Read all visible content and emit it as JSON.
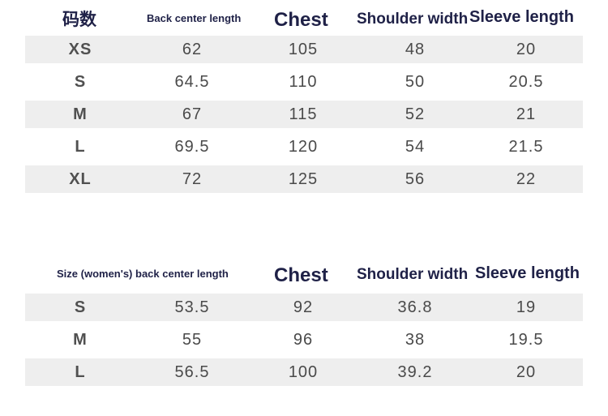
{
  "mens": {
    "headers": {
      "size": "码数",
      "back": "Back center length",
      "chest": "Chest",
      "shoulder": "Shoulder width",
      "sleeve": "Sleeve length"
    },
    "rows": [
      {
        "size": "XS",
        "back": "62",
        "chest": "105",
        "shoulder": "48",
        "sleeve": "20"
      },
      {
        "size": "S",
        "back": "64.5",
        "chest": "110",
        "shoulder": "50",
        "sleeve": "20.5"
      },
      {
        "size": "M",
        "back": "67",
        "chest": "115",
        "shoulder": "52",
        "sleeve": "21"
      },
      {
        "size": "L",
        "back": "69.5",
        "chest": "120",
        "shoulder": "54",
        "sleeve": "21.5"
      },
      {
        "size": "XL",
        "back": "72",
        "chest": "125",
        "shoulder": "56",
        "sleeve": "22"
      }
    ]
  },
  "womens": {
    "headers": {
      "size_back": "Size (women's) back center length",
      "chest": "Chest",
      "shoulder": "Shoulder width",
      "sleeve": "Sleeve length"
    },
    "rows": [
      {
        "size": "S",
        "back": "53.5",
        "chest": "92",
        "shoulder": "36.8",
        "sleeve": "19"
      },
      {
        "size": "M",
        "back": "55",
        "chest": "96",
        "shoulder": "38",
        "sleeve": "19.5"
      },
      {
        "size": "L",
        "back": "56.5",
        "chest": "100",
        "shoulder": "39.2",
        "sleeve": "20"
      }
    ]
  }
}
